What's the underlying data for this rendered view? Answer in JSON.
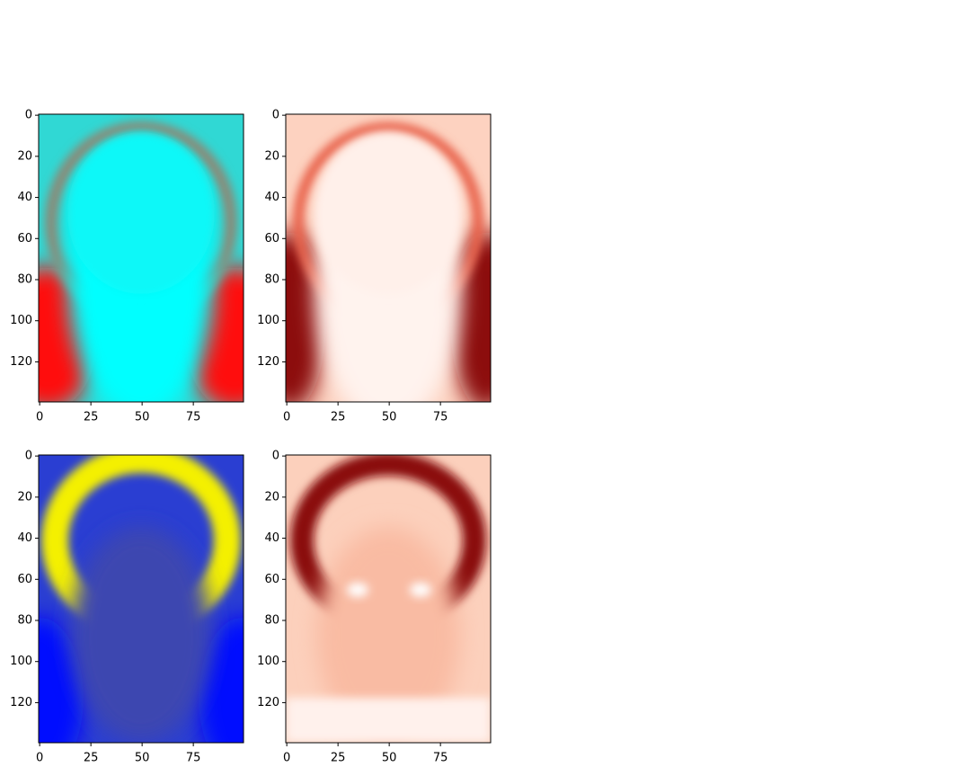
{
  "chart_data": [
    {
      "type": "image",
      "xlim": [
        -0.5,
        99.5
      ],
      "ylim": [
        139.5,
        -0.5
      ],
      "xticks": [
        0,
        25,
        50,
        75
      ],
      "yticks": [
        0,
        20,
        40,
        60,
        80,
        100,
        120
      ]
    },
    {
      "type": "image",
      "xlim": [
        -0.5,
        99.5
      ],
      "ylim": [
        139.5,
        -0.5
      ],
      "xticks": [
        0,
        25,
        50,
        75
      ],
      "yticks": [
        0,
        20,
        40,
        60,
        80,
        100,
        120
      ]
    },
    {
      "type": "image",
      "xlim": [
        -0.5,
        99.5
      ],
      "ylim": [
        139.5,
        -0.5
      ],
      "xticks": [
        0,
        25,
        50,
        75
      ],
      "yticks": [
        0,
        20,
        40,
        60,
        80,
        100,
        120
      ]
    },
    {
      "type": "image",
      "xlim": [
        -0.5,
        99.5
      ],
      "ylim": [
        139.5,
        -0.5
      ],
      "xticks": [
        0,
        25,
        50,
        75
      ],
      "yticks": [
        0,
        20,
        40,
        60,
        80,
        100,
        120
      ]
    }
  ]
}
